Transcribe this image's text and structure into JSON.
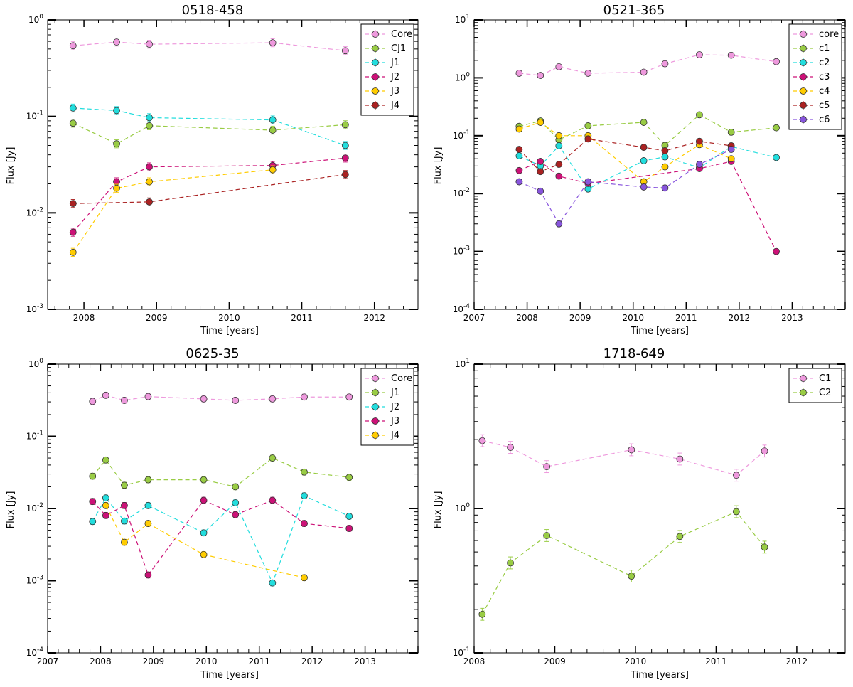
{
  "chart_data": [
    {
      "type": "scatter",
      "title": "0518-458",
      "xlabel": "Time [years]",
      "ylabel": "Flux [Jy]",
      "xlim": [
        2007.5,
        2012.6
      ],
      "ylim": [
        0.001,
        1
      ],
      "yscale": "log",
      "x_ticks": [
        2008,
        2009,
        2010,
        2011,
        2012
      ],
      "y_ticks": [
        {
          "exp": -3,
          "value": 0.001
        },
        {
          "exp": -2,
          "value": 0.01
        },
        {
          "exp": -1,
          "value": 0.1
        },
        {
          "exp": 0,
          "value": 1
        }
      ],
      "legend": "top-right",
      "series": [
        {
          "name": "Core",
          "color": "#ee99dd",
          "points": [
            [
              2007.85,
              0.54
            ],
            [
              2008.45,
              0.59
            ],
            [
              2008.9,
              0.56
            ],
            [
              2010.6,
              0.58
            ],
            [
              2011.6,
              0.48
            ]
          ]
        },
        {
          "name": "CJ1",
          "color": "#99cc44",
          "points": [
            [
              2007.85,
              0.085
            ],
            [
              2008.45,
              0.052
            ],
            [
              2008.9,
              0.08
            ],
            [
              2010.6,
              0.072
            ],
            [
              2011.6,
              0.082
            ]
          ]
        },
        {
          "name": "J1",
          "color": "#22dddd",
          "points": [
            [
              2007.85,
              0.122
            ],
            [
              2008.45,
              0.115
            ],
            [
              2008.9,
              0.097
            ],
            [
              2010.6,
              0.092
            ],
            [
              2011.6,
              0.05
            ]
          ]
        },
        {
          "name": "J2",
          "color": "#cc1177",
          "points": [
            [
              2007.85,
              0.0063
            ],
            [
              2008.45,
              0.021
            ],
            [
              2008.9,
              0.03
            ],
            [
              2010.6,
              0.031
            ],
            [
              2011.6,
              0.037
            ]
          ]
        },
        {
          "name": "J3",
          "color": "#ffcc00",
          "points": [
            [
              2007.85,
              0.0039
            ],
            [
              2008.45,
              0.018
            ],
            [
              2008.9,
              0.021
            ],
            [
              2010.6,
              0.028
            ]
          ]
        },
        {
          "name": "J4",
          "color": "#aa2222",
          "points": [
            [
              2007.85,
              0.0125
            ],
            [
              2008.9,
              0.013
            ],
            [
              2011.6,
              0.025
            ]
          ]
        }
      ]
    },
    {
      "type": "scatter",
      "title": "0521-365",
      "xlabel": "Time [years]",
      "ylabel": "Flux [Jy]",
      "xlim": [
        2007,
        2014
      ],
      "ylim": [
        0.0001,
        10
      ],
      "yscale": "log",
      "x_ticks": [
        2007,
        2008,
        2009,
        2010,
        2011,
        2012,
        2013
      ],
      "y_ticks": [
        {
          "exp": -4,
          "value": 0.0001
        },
        {
          "exp": -3,
          "value": 0.001
        },
        {
          "exp": -2,
          "value": 0.01
        },
        {
          "exp": -1,
          "value": 0.1
        },
        {
          "exp": 0,
          "value": 1
        },
        {
          "exp": 1,
          "value": 10
        }
      ],
      "legend": "top-right",
      "series": [
        {
          "name": "core",
          "color": "#ee99dd",
          "points": [
            [
              2007.85,
              1.2
            ],
            [
              2008.25,
              1.1
            ],
            [
              2008.6,
              1.55
            ],
            [
              2009.15,
              1.2
            ],
            [
              2010.2,
              1.25
            ],
            [
              2010.6,
              1.75
            ],
            [
              2011.25,
              2.5
            ],
            [
              2011.85,
              2.45
            ],
            [
              2012.7,
              1.9
            ]
          ]
        },
        {
          "name": "c1",
          "color": "#99cc44",
          "points": [
            [
              2007.85,
              0.145
            ],
            [
              2008.25,
              0.18
            ],
            [
              2008.6,
              0.085
            ],
            [
              2009.15,
              0.148
            ],
            [
              2010.2,
              0.17
            ],
            [
              2010.6,
              0.068
            ],
            [
              2011.25,
              0.23
            ],
            [
              2011.85,
              0.115
            ],
            [
              2012.7,
              0.137
            ]
          ]
        },
        {
          "name": "c2",
          "color": "#22dddd",
          "points": [
            [
              2007.85,
              0.045
            ],
            [
              2008.25,
              0.03
            ],
            [
              2008.6,
              0.067
            ],
            [
              2009.15,
              0.012
            ],
            [
              2010.2,
              0.037
            ],
            [
              2010.6,
              0.043
            ],
            [
              2011.25,
              0.028
            ],
            [
              2011.85,
              0.065
            ],
            [
              2012.7,
              0.042
            ]
          ]
        },
        {
          "name": "c3",
          "color": "#cc1177",
          "points": [
            [
              2007.85,
              0.025
            ],
            [
              2008.25,
              0.036
            ],
            [
              2008.6,
              0.02
            ],
            [
              2009.15,
              0.015
            ],
            [
              2011.25,
              0.027
            ],
            [
              2011.85,
              0.036
            ],
            [
              2012.7,
              0.001
            ]
          ]
        },
        {
          "name": "c4",
          "color": "#ffcc00",
          "points": [
            [
              2007.85,
              0.13
            ],
            [
              2008.25,
              0.17
            ],
            [
              2008.6,
              0.1
            ],
            [
              2009.15,
              0.1
            ],
            [
              2010.2,
              0.016
            ],
            [
              2010.6,
              0.029
            ],
            [
              2011.25,
              0.07
            ],
            [
              2011.85,
              0.04
            ]
          ]
        },
        {
          "name": "c5",
          "color": "#aa2222",
          "points": [
            [
              2007.85,
              0.058
            ],
            [
              2008.25,
              0.024
            ],
            [
              2008.6,
              0.032
            ],
            [
              2009.15,
              0.088
            ],
            [
              2010.2,
              0.063
            ],
            [
              2010.6,
              0.055
            ],
            [
              2011.25,
              0.08
            ],
            [
              2011.85,
              0.067
            ]
          ]
        },
        {
          "name": "c6",
          "color": "#8855dd",
          "points": [
            [
              2007.85,
              0.016
            ],
            [
              2008.25,
              0.011
            ],
            [
              2008.6,
              0.003
            ],
            [
              2009.15,
              0.016
            ],
            [
              2010.2,
              0.013
            ],
            [
              2010.6,
              0.0125
            ],
            [
              2011.25,
              0.032
            ],
            [
              2011.85,
              0.058
            ]
          ]
        }
      ]
    },
    {
      "type": "scatter",
      "title": "0625-35",
      "xlabel": "Time [years]",
      "ylabel": "Flux [Jy]",
      "xlim": [
        2007,
        2014
      ],
      "ylim": [
        0.0001,
        1
      ],
      "yscale": "log",
      "x_ticks": [
        2007,
        2008,
        2009,
        2010,
        2011,
        2012,
        2013
      ],
      "y_ticks": [
        {
          "exp": -4,
          "value": 0.0001
        },
        {
          "exp": -3,
          "value": 0.001
        },
        {
          "exp": -2,
          "value": 0.01
        },
        {
          "exp": -1,
          "value": 0.1
        },
        {
          "exp": 0,
          "value": 1
        }
      ],
      "legend": "top-right",
      "series": [
        {
          "name": "Core",
          "color": "#ee99dd",
          "points": [
            [
              2007.85,
              0.305
            ],
            [
              2008.1,
              0.37
            ],
            [
              2008.45,
              0.315
            ],
            [
              2008.9,
              0.355
            ],
            [
              2009.95,
              0.33
            ],
            [
              2010.55,
              0.315
            ],
            [
              2011.25,
              0.33
            ],
            [
              2011.85,
              0.35
            ],
            [
              2012.7,
              0.35
            ]
          ]
        },
        {
          "name": "J1",
          "color": "#99cc44",
          "points": [
            [
              2007.85,
              0.028
            ],
            [
              2008.1,
              0.047
            ],
            [
              2008.45,
              0.021
            ],
            [
              2008.9,
              0.025
            ],
            [
              2009.95,
              0.025
            ],
            [
              2010.55,
              0.02
            ],
            [
              2011.25,
              0.05
            ],
            [
              2011.85,
              0.032
            ],
            [
              2012.7,
              0.027
            ]
          ]
        },
        {
          "name": "J2",
          "color": "#22dddd",
          "points": [
            [
              2007.85,
              0.0066
            ],
            [
              2008.1,
              0.014
            ],
            [
              2008.45,
              0.0067
            ],
            [
              2008.9,
              0.011
            ],
            [
              2009.95,
              0.0046
            ],
            [
              2010.55,
              0.012
            ],
            [
              2011.25,
              0.00093
            ],
            [
              2011.85,
              0.015
            ],
            [
              2012.7,
              0.0078
            ]
          ]
        },
        {
          "name": "J3",
          "color": "#cc1177",
          "points": [
            [
              2007.85,
              0.0125
            ],
            [
              2008.1,
              0.008
            ],
            [
              2008.45,
              0.011
            ],
            [
              2008.9,
              0.0012
            ],
            [
              2009.95,
              0.013
            ],
            [
              2010.55,
              0.0082
            ],
            [
              2011.25,
              0.013
            ],
            [
              2011.85,
              0.0062
            ],
            [
              2012.7,
              0.0053
            ]
          ]
        },
        {
          "name": "J4",
          "color": "#ffcc00",
          "points": [
            [
              2008.1,
              0.011
            ],
            [
              2008.45,
              0.0034
            ],
            [
              2008.9,
              0.0062
            ],
            [
              2009.95,
              0.0023
            ],
            [
              2011.85,
              0.0011
            ]
          ]
        }
      ]
    },
    {
      "type": "scatter",
      "title": "1718-649",
      "xlabel": "Time [years]",
      "ylabel": "Flux [Jy]",
      "xlim": [
        2008,
        2012.6
      ],
      "ylim": [
        0.1,
        10
      ],
      "yscale": "log",
      "x_ticks": [
        2008,
        2009,
        2010,
        2011,
        2012
      ],
      "y_ticks": [
        {
          "exp": -1,
          "value": 0.1
        },
        {
          "exp": 0,
          "value": 1
        },
        {
          "exp": 1,
          "value": 10
        }
      ],
      "legend": "top-right",
      "series": [
        {
          "name": "C1",
          "color": "#ee99dd",
          "points": [
            [
              2008.1,
              2.95
            ],
            [
              2008.45,
              2.65
            ],
            [
              2008.9,
              1.95
            ],
            [
              2009.95,
              2.55
            ],
            [
              2010.55,
              2.2
            ],
            [
              2011.25,
              1.7
            ],
            [
              2011.6,
              2.5
            ]
          ]
        },
        {
          "name": "C2",
          "color": "#99cc44",
          "points": [
            [
              2008.1,
              0.185
            ],
            [
              2008.45,
              0.42
            ],
            [
              2008.9,
              0.65
            ],
            [
              2009.95,
              0.34
            ],
            [
              2010.55,
              0.64
            ],
            [
              2011.25,
              0.95
            ],
            [
              2011.6,
              0.54
            ]
          ]
        }
      ]
    }
  ]
}
